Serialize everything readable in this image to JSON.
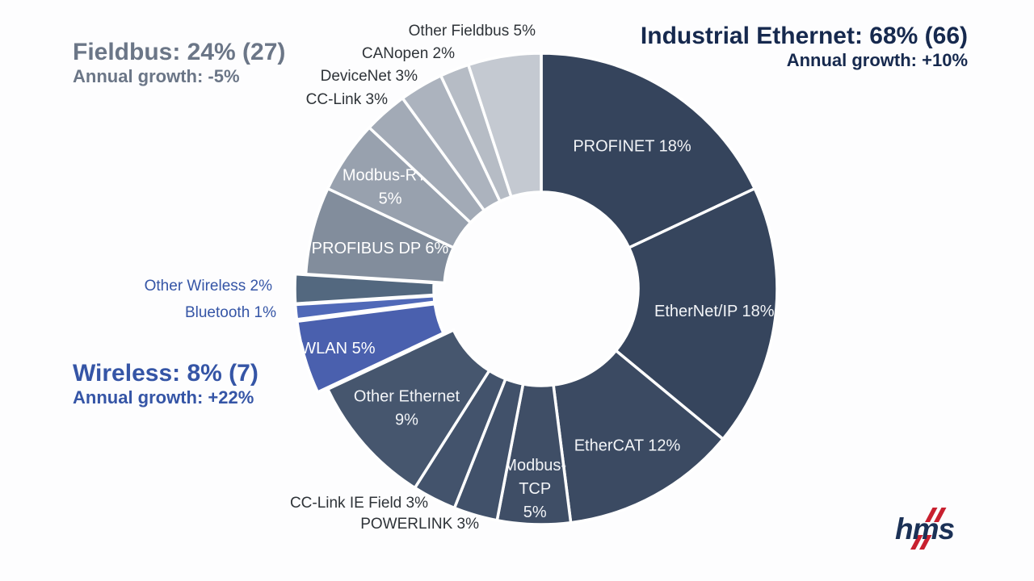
{
  "headers": {
    "fieldbus": {
      "title": "Fieldbus: 24% (27)",
      "growth": "Annual growth: -5%",
      "color": "#6B7687"
    },
    "industrial_ethernet": {
      "title": "Industrial Ethernet: 68% (66)",
      "growth": "Annual growth: +10%",
      "color": "#16294E"
    },
    "wireless": {
      "title": "Wireless: 8% (7)",
      "growth": "Annual growth: +22%",
      "color": "#3555A6"
    }
  },
  "logo": {
    "text": "hms",
    "text_color": "#1B3156",
    "slash_color": "#C8202F"
  },
  "chart_data": {
    "type": "pie",
    "subtype": "donut",
    "unit": "%",
    "direction": "clockwise",
    "start_angle_deg": 0,
    "center": [
      670,
      358
    ],
    "outer_radius": 292,
    "inner_radius": 120,
    "gap_stroke": "#ffffff",
    "gap_width": 3.5,
    "groups": [
      {
        "name": "Industrial Ethernet",
        "share_pct": 68,
        "previous_pct": 66,
        "annual_growth_pct": 10
      },
      {
        "name": "Fieldbus",
        "share_pct": 24,
        "previous_pct": 27,
        "annual_growth_pct": -5
      },
      {
        "name": "Wireless",
        "share_pct": 8,
        "previous_pct": 7,
        "annual_growth_pct": 22
      }
    ],
    "segments": [
      {
        "id": "profinet",
        "name": "PROFINET",
        "value": 18,
        "group": "Industrial Ethernet",
        "color": "#35445C",
        "label": "PROFINET 18%",
        "label_inside": true,
        "label_lines": [
          "PROFINET 18%"
        ],
        "label_r": 210,
        "text_color": "#F2F4F7",
        "explode": 0
      },
      {
        "id": "ethernet-ip",
        "name": "EtherNet/IP",
        "value": 18,
        "group": "Industrial Ethernet",
        "color": "#36455D",
        "label": "EtherNet/IP 18%",
        "label_inside": true,
        "label_lines": [
          "EtherNet/IP 18%"
        ],
        "label_r": 216,
        "text_color": "#F2F4F7",
        "explode": 0
      },
      {
        "id": "ethercat",
        "name": "EtherCAT",
        "value": 12,
        "group": "Industrial Ethernet",
        "color": "#3B4A62",
        "label": "EtherCAT 12%",
        "label_inside": true,
        "label_lines": [
          "EtherCAT 12%"
        ],
        "label_r": 221,
        "text_color": "#F2F4F7",
        "explode": 0
      },
      {
        "id": "modbus-tcp",
        "name": "Modbus-TCP",
        "value": 5,
        "group": "Industrial Ethernet",
        "color": "#3F4E66",
        "label": "Modbus-TCP 5%",
        "label_inside": true,
        "label_lines": [
          "Modbus-",
          "TCP",
          "5%"
        ],
        "label_r": 247,
        "text_color": "#F2F4F7",
        "explode": 0
      },
      {
        "id": "powerlink",
        "name": "POWERLINK",
        "value": 3,
        "group": "Industrial Ethernet",
        "color": "#41516A",
        "label": "POWERLINK 3%",
        "label_inside": false,
        "explode": 0
      },
      {
        "id": "cclink-ie-field",
        "name": "CC-Link IE Field",
        "value": 3,
        "group": "Industrial Ethernet",
        "color": "#43536C",
        "label": "CC-Link IE Field 3%",
        "label_inside": false,
        "explode": 0
      },
      {
        "id": "other-ethernet",
        "name": "Other Ethernet",
        "value": 9,
        "group": "Industrial Ethernet",
        "color": "#46566E",
        "label": "Other Ethernet 9%",
        "label_inside": true,
        "label_lines": [
          "Other Ethernet",
          "9%"
        ],
        "label_r": 222,
        "text_color": "#F2F4F7",
        "explode": 0
      },
      {
        "id": "wlan",
        "name": "WLAN",
        "value": 5,
        "group": "Wireless",
        "color": "#4A60AE",
        "label": "WLAN 5%",
        "label_inside": true,
        "label_lines": [
          "WLAN 5%"
        ],
        "label_r": 249,
        "text_color": "#FFFFFF",
        "explode": 13
      },
      {
        "id": "bluetooth",
        "name": "Bluetooth",
        "value": 1,
        "group": "Wireless",
        "color": "#5069B8",
        "label": "Bluetooth 1%",
        "label_inside": false,
        "explode": 13
      },
      {
        "id": "other-wireless",
        "name": "Other Wireless",
        "value": 2,
        "group": "Wireless",
        "color": "#53687F",
        "label": "Other Wireless 2%",
        "label_inside": false,
        "explode": 13
      },
      {
        "id": "profibus-dp",
        "name": "PROFIBUS DP",
        "value": 6,
        "group": "Fieldbus",
        "color": "#828D9C",
        "label": "PROFIBUS DP 6%",
        "label_inside": true,
        "label_lines": [
          "PROFIBUS DP 6%"
        ],
        "label_r": 206,
        "text_color": "#FFFFFF",
        "explode": 0
      },
      {
        "id": "modbus-rtu",
        "name": "Modbus-RTU",
        "value": 5,
        "group": "Fieldbus",
        "color": "#98A1AE",
        "label": "Modbus-RTU 5%",
        "label_inside": true,
        "label_lines": [
          "Modbus-RTU",
          "5%"
        ],
        "label_r": 226,
        "text_color": "#FFFFFF",
        "explode": 0
      },
      {
        "id": "cclink",
        "name": "CC-Link",
        "value": 3,
        "group": "Fieldbus",
        "color": "#A2AAB6",
        "label": "CC-Link 3%",
        "label_inside": false,
        "explode": 0
      },
      {
        "id": "devicenet",
        "name": "DeviceNet",
        "value": 3,
        "group": "Fieldbus",
        "color": "#ACB3BE",
        "label": "DeviceNet 3%",
        "label_inside": false,
        "explode": 0
      },
      {
        "id": "canopen",
        "name": "CANopen",
        "value": 2,
        "group": "Fieldbus",
        "color": "#B6BCC5",
        "label": "CANopen 2%",
        "label_inside": false,
        "explode": 0
      },
      {
        "id": "other-fieldbus",
        "name": "Other Fieldbus",
        "value": 5,
        "group": "Fieldbus",
        "color": "#C4C9D1",
        "label": "Other Fieldbus 5%",
        "label_inside": false,
        "explode": 0
      }
    ]
  }
}
